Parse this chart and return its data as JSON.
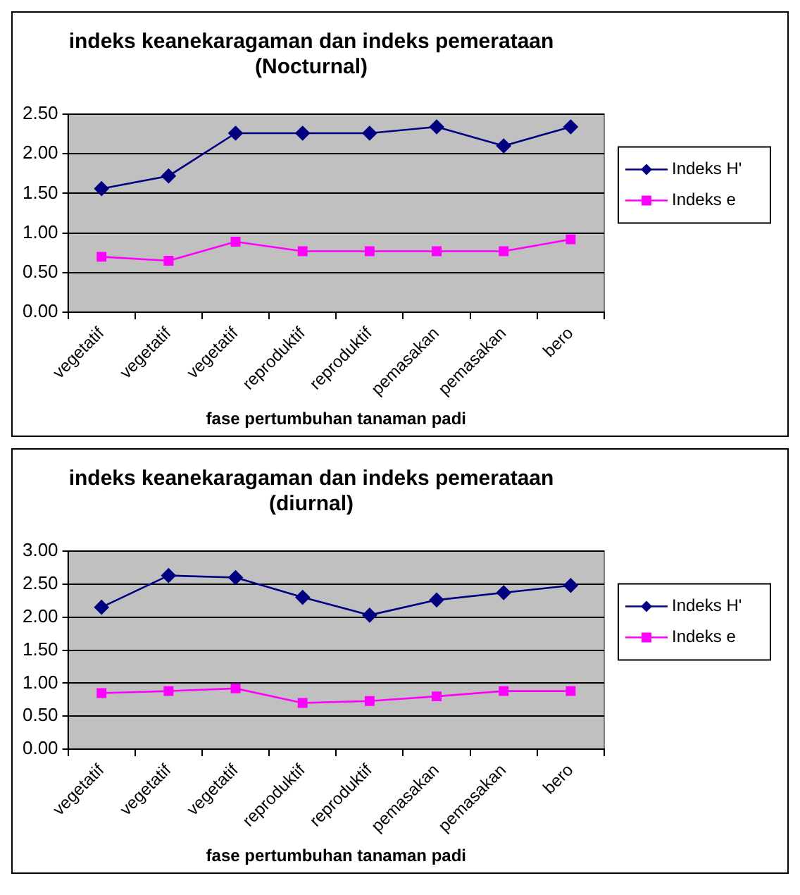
{
  "chart_data": [
    {
      "type": "line",
      "title": [
        "indeks keanekaragaman dan indeks pemerataan",
        "(Nocturnal)"
      ],
      "xlabel": "fase pertumbuhan tanaman padi",
      "categories": [
        "vegetatif",
        "vegetatif",
        "vegetatif",
        "reproduktif",
        "reproduktif",
        "pemasakan",
        "pemasakan",
        "bero"
      ],
      "series": [
        {
          "name": "Indeks H'",
          "color": "#000080",
          "marker": "diamond",
          "values": [
            1.56,
            1.72,
            2.26,
            2.26,
            2.26,
            2.34,
            2.1,
            2.34
          ]
        },
        {
          "name": "Indeks e",
          "color": "#ff00ff",
          "marker": "square",
          "values": [
            0.7,
            0.65,
            0.89,
            0.77,
            0.77,
            0.77,
            0.77,
            0.92
          ]
        }
      ],
      "ylim": [
        0,
        2.5
      ],
      "yticks": [
        {
          "value": 0,
          "label": "0.00"
        },
        {
          "value": 0.5,
          "label": "0.50"
        },
        {
          "value": 1,
          "label": "1.00"
        },
        {
          "value": 1.5,
          "label": "1.50"
        },
        {
          "value": 2,
          "label": "2.00"
        },
        {
          "value": 2.5,
          "label": "2.50"
        }
      ],
      "grid": "y",
      "legend": "right"
    },
    {
      "type": "line",
      "title": [
        "indeks keanekaragaman dan indeks pemerataan",
        "(diurnal)"
      ],
      "xlabel": "fase pertumbuhan tanaman padi",
      "categories": [
        "vegetatif",
        "vegetatif",
        "vegetatif",
        "reproduktif",
        "reproduktif",
        "pemasakan",
        "pemasakan",
        "bero"
      ],
      "series": [
        {
          "name": "Indeks H'",
          "color": "#000080",
          "marker": "diamond",
          "values": [
            2.15,
            2.63,
            2.6,
            2.3,
            2.03,
            2.26,
            2.37,
            2.48
          ]
        },
        {
          "name": "Indeks e",
          "color": "#ff00ff",
          "marker": "square",
          "values": [
            0.85,
            0.88,
            0.92,
            0.7,
            0.73,
            0.8,
            0.88,
            0.88
          ]
        }
      ],
      "ylim": [
        0,
        3
      ],
      "yticks": [
        {
          "value": 0,
          "label": "0.00"
        },
        {
          "value": 0.5,
          "label": "0.50"
        },
        {
          "value": 1,
          "label": "1.00"
        },
        {
          "value": 1.5,
          "label": "1.50"
        },
        {
          "value": 2,
          "label": "2.00"
        },
        {
          "value": 2.5,
          "label": "2.50"
        },
        {
          "value": 3,
          "label": "3.00"
        }
      ],
      "grid": "y",
      "legend": "right"
    }
  ]
}
